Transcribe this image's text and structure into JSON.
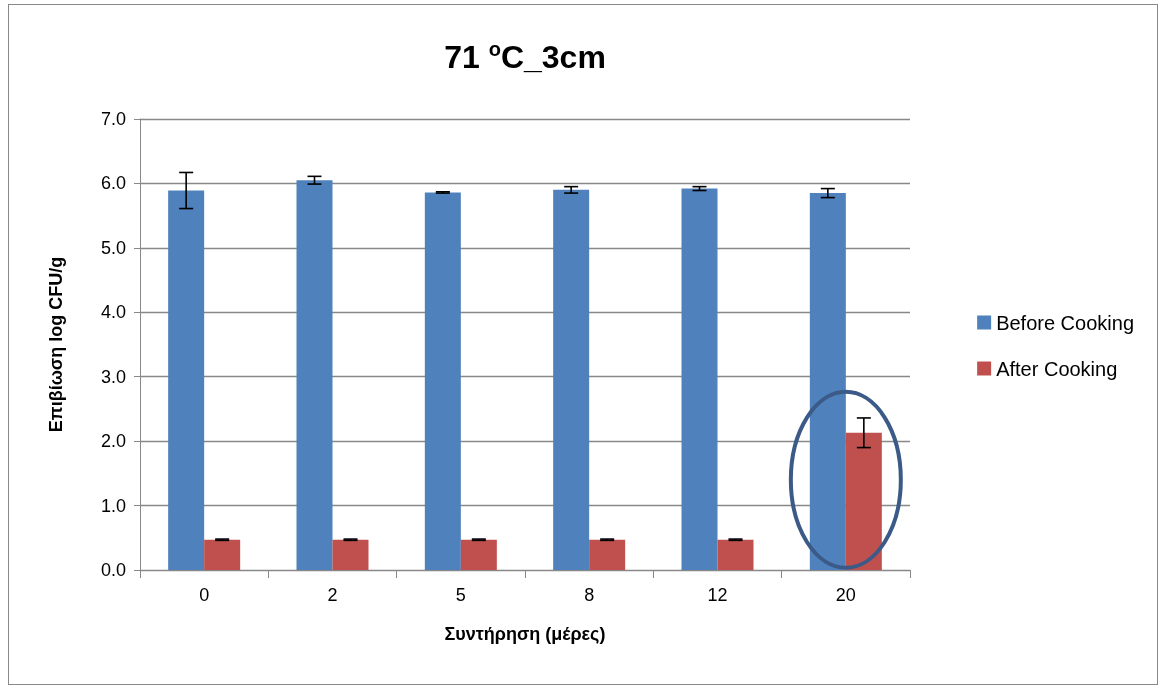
{
  "chart_data": {
    "type": "bar",
    "title": "71 $^{o}$C_3cm",
    "xlabel": "Συντήρηση (μέρες)",
    "ylabel": "Επιβίωση log CFU/g",
    "categories": [
      "0",
      "2",
      "5",
      "8",
      "12",
      "20"
    ],
    "series": [
      {
        "name": "Before Cooking",
        "color": "#4f81bd",
        "values": [
          5.89,
          6.05,
          5.86,
          5.9,
          5.92,
          5.85
        ],
        "errors": [
          0.28,
          0.06,
          0.01,
          0.05,
          0.03,
          0.07
        ]
      },
      {
        "name": "After Cooking",
        "color": "#c0504d",
        "values": [
          0.47,
          0.47,
          0.47,
          0.47,
          0.47,
          2.13
        ],
        "errors": [
          0.01,
          0.01,
          0.01,
          0.01,
          0.01,
          0.23
        ]
      }
    ],
    "ylim": [
      0,
      7
    ],
    "yticks": [
      {
        "value": 0,
        "label": "0.0"
      },
      {
        "value": 1,
        "label": "1.0"
      },
      {
        "value": 2,
        "label": "2.0"
      },
      {
        "value": 3,
        "label": "3.0"
      },
      {
        "value": 4,
        "label": "4.0"
      },
      {
        "value": 5,
        "label": "5.0"
      },
      {
        "value": 6,
        "label": "6.0"
      },
      {
        "value": 7,
        "label": "7.0"
      }
    ],
    "grid": "y",
    "legend": "right"
  }
}
